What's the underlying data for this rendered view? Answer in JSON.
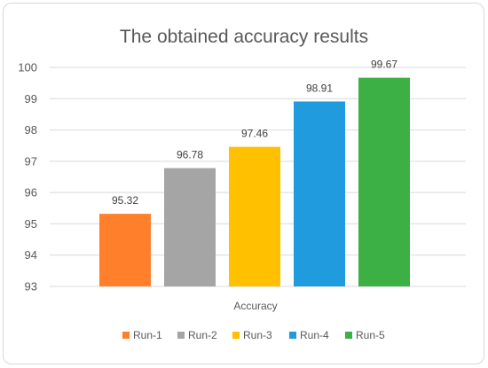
{
  "chart_data": {
    "type": "bar",
    "title": "The obtained accuracy results",
    "xlabel": "",
    "ylabel": "",
    "category": "Accuracy",
    "ylim": [
      93,
      100
    ],
    "yticks": [
      "93",
      "94",
      "95",
      "96",
      "97",
      "98",
      "99",
      "100"
    ],
    "grid": true,
    "legend_position": "bottom",
    "series": [
      {
        "name": "Run-1",
        "value": 95.32,
        "label": "95.32",
        "color": "#ff7f2a"
      },
      {
        "name": "Run-2",
        "value": 96.78,
        "label": "96.78",
        "color": "#a5a5a5"
      },
      {
        "name": "Run-3",
        "value": 97.46,
        "label": "97.46",
        "color": "#ffc000"
      },
      {
        "name": "Run-4",
        "value": 98.91,
        "label": "98.91",
        "color": "#1f9bde"
      },
      {
        "name": "Run-5",
        "value": 99.67,
        "label": "99.67",
        "color": "#3db045"
      }
    ]
  }
}
